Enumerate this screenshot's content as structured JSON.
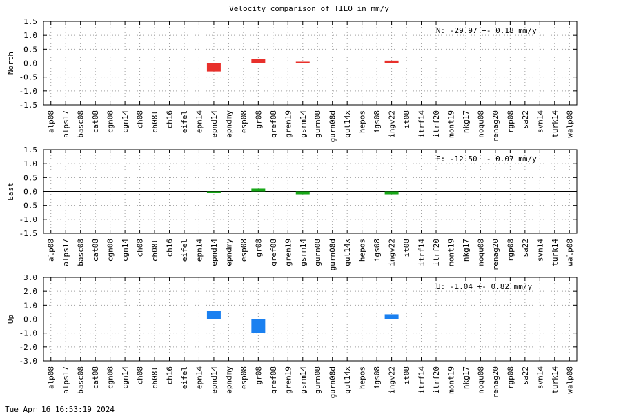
{
  "title": "Velocity comparison of TILO in mm/y",
  "timestamp": "Tue Apr 16 16:53:19 2024",
  "categories": [
    "alp08",
    "alps17",
    "basc08",
    "cat08",
    "cgn08",
    "cgn14",
    "ch08",
    "ch08l",
    "ch16",
    "eifel",
    "epn14",
    "epnd14",
    "epndmy",
    "esp08",
    "gr08",
    "gref08",
    "gren19",
    "gsrm14",
    "gurn08",
    "gurn08d",
    "gut14x",
    "hepos",
    "igs08",
    "ingv22",
    "it08",
    "itrf14",
    "itrf20",
    "mont19",
    "nkg17",
    "noqu08",
    "renag20",
    "rgp08",
    "sa22",
    "svn14",
    "turk14",
    "walp08"
  ],
  "chart_data": [
    {
      "type": "bar",
      "ylabel": "North",
      "ylim": [
        -1.5,
        1.5
      ],
      "yticks": [
        1.5,
        1.0,
        0.5,
        0.0,
        -0.5,
        -1.0,
        -1.5
      ],
      "ytick_labels": [
        "1.5",
        "1.0",
        "0.5",
        "0.0",
        "-0.5",
        "-1.0",
        "-1.5"
      ],
      "color": "#e8302b",
      "annotation": "N: -29.97 +-  0.18 mm/y",
      "values": {
        "epnd14": -0.3,
        "gr08": 0.15,
        "gsrm14": 0.05,
        "ingv22": 0.09
      }
    },
    {
      "type": "bar",
      "ylabel": "East",
      "ylim": [
        -1.5,
        1.5
      ],
      "yticks": [
        1.5,
        1.0,
        0.5,
        0.0,
        -0.5,
        -1.0,
        -1.5
      ],
      "ytick_labels": [
        "1.5",
        "1.0",
        "0.5",
        "0.0",
        "-0.5",
        "-1.0",
        "-1.5"
      ],
      "color": "#18a818",
      "annotation": "E: -12.50 +-  0.07 mm/y",
      "values": {
        "epnd14": -0.03,
        "gr08": 0.1,
        "gsrm14": -0.1,
        "ingv22": -0.1
      }
    },
    {
      "type": "bar",
      "ylabel": "Up",
      "ylim": [
        -3.0,
        3.0
      ],
      "yticks": [
        3.0,
        2.0,
        1.0,
        0.0,
        -1.0,
        -2.0,
        -3.0
      ],
      "ytick_labels": [
        "3.0",
        "2.0",
        "1.0",
        "0.0",
        "-1.0",
        "-2.0",
        "-3.0"
      ],
      "color": "#1a80f0",
      "annotation": "U:  -1.04 +-  0.82 mm/y",
      "values": {
        "epnd14": 0.6,
        "gr08": -1.0,
        "ingv22": 0.35
      }
    }
  ]
}
